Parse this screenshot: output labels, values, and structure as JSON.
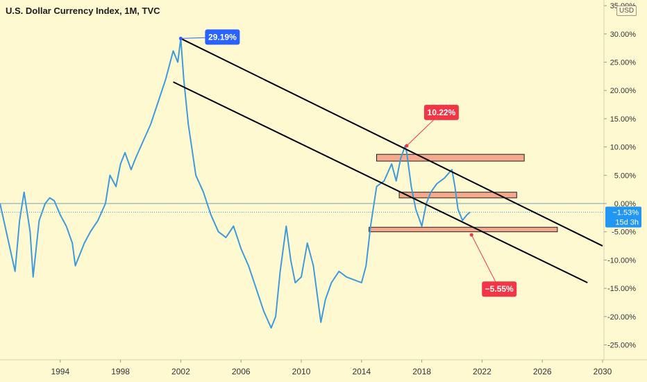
{
  "title": "U.S. Dollar Currency Index, 1M, TVC",
  "currency_badge": "USD",
  "colors": {
    "background": "#fff9d1",
    "line": "#3d9bdc",
    "trendline": "#000000",
    "zone_fill": "#f6a98c",
    "blue_callout": "#2962ff",
    "red_callout": "#f23645",
    "price_label": "#2196f3"
  },
  "chart_data": {
    "type": "line",
    "title": "U.S. Dollar Currency Index, 1M, TVC",
    "xlabel": "",
    "ylabel": "",
    "xlim": [
      1990,
      2030
    ],
    "ylim": [
      -28.5,
      36
    ],
    "grid": false,
    "y_ticks": [
      "35.00%",
      "30.00%",
      "25.00%",
      "20.00%",
      "15.00%",
      "10.00%",
      "5.00%",
      "0.00%",
      "-5.00%",
      "-10.00%",
      "-15.00%",
      "-20.00%",
      "-25.00%"
    ],
    "x_ticks": [
      "1994",
      "1998",
      "2002",
      "2006",
      "2010",
      "2014",
      "2018",
      "2022",
      "2026",
      "2030"
    ],
    "series": [
      {
        "x": [
          1990.0,
          1990.5,
          1991.0,
          1991.3,
          1991.6,
          1992.0,
          1992.2,
          1992.6,
          1993.0,
          1993.3,
          1993.6,
          1994.0,
          1994.4,
          1994.8,
          1995.0,
          1995.3,
          1995.6,
          1996.0,
          1996.5,
          1997.0,
          1997.3,
          1997.7,
          1998.0,
          1998.3,
          1998.7,
          1999.0,
          1999.5,
          2000.0,
          2000.5,
          2001.0,
          2001.5,
          2001.8,
          2002.0,
          2002.2,
          2002.5,
          2003.0,
          2003.5,
          2004.0,
          2004.5,
          2005.0,
          2005.5,
          2006.0,
          2006.5,
          2007.0,
          2007.5,
          2008.0,
          2008.3,
          2008.6,
          2009.0,
          2009.3,
          2009.6,
          2010.0,
          2010.4,
          2010.8,
          2011.0,
          2011.3,
          2011.6,
          2012.0,
          2012.5,
          2013.0,
          2013.5,
          2014.0,
          2014.3,
          2014.6,
          2015.0,
          2015.5,
          2016.0,
          2016.3,
          2016.6,
          2016.9,
          2017.0,
          2017.3,
          2017.6,
          2018.0,
          2018.3,
          2018.6,
          2019.0,
          2019.5,
          2020.0,
          2020.2,
          2020.4,
          2020.7,
          2021.0,
          2021.2
        ],
        "y": [
          0.0,
          -6.0,
          -12.0,
          -3.0,
          2.0,
          -5.0,
          -13.0,
          -3.0,
          0.0,
          1.0,
          0.5,
          -2.0,
          -4.0,
          -7.0,
          -11.0,
          -9.0,
          -7.0,
          -5.0,
          -3.0,
          0.0,
          5.0,
          3.0,
          7.0,
          9.0,
          6.0,
          8.0,
          11.0,
          14.0,
          18.0,
          22.0,
          27.0,
          25.0,
          29.19,
          22.0,
          14.0,
          5.0,
          2.0,
          -2.0,
          -5.0,
          -6.0,
          -4.0,
          -8.0,
          -11.0,
          -15.0,
          -19.0,
          -22.0,
          -20.0,
          -12.0,
          -4.0,
          -10.0,
          -14.0,
          -13.0,
          -7.0,
          -11.0,
          -15.0,
          -21.0,
          -17.0,
          -14.0,
          -12.0,
          -13.0,
          -13.5,
          -14.0,
          -11.0,
          -4.0,
          3.0,
          4.0,
          7.0,
          4.0,
          8.0,
          10.22,
          9.0,
          3.0,
          -1.0,
          -4.0,
          0.0,
          2.0,
          3.5,
          4.5,
          6.0,
          3.0,
          -1.0,
          -3.0,
          -2.0,
          -1.53
        ]
      }
    ],
    "current_value_label": "−1.53%",
    "countdown_label": "15d 3h",
    "annotations": [
      {
        "label": "29.19%",
        "x": 2002.0,
        "y": 29.19,
        "color": "blue"
      },
      {
        "label": "10.22%",
        "x": 2017.0,
        "y": 10.22,
        "color": "red"
      },
      {
        "label": "−5.55%",
        "x": 2021.3,
        "y": -5.55,
        "color": "red"
      }
    ],
    "trendlines": [
      {
        "x1": 2002.0,
        "y1": 29.19,
        "x2": 2030.0,
        "y2": -7.5
      },
      {
        "x1": 2001.5,
        "y1": 21.5,
        "x2": 2029.0,
        "y2": -14.0
      }
    ],
    "zones": [
      {
        "x1": 2015.0,
        "x2": 2024.8,
        "y1": 7.5,
        "y2": 8.7
      },
      {
        "x1": 2016.5,
        "x2": 2024.3,
        "y1": 1.0,
        "y2": 2.0
      },
      {
        "x1": 2014.5,
        "x2": 2027.0,
        "y1": -4.2,
        "y2": -5.0
      }
    ],
    "zero_line": 0.0,
    "current_line": -1.53
  }
}
